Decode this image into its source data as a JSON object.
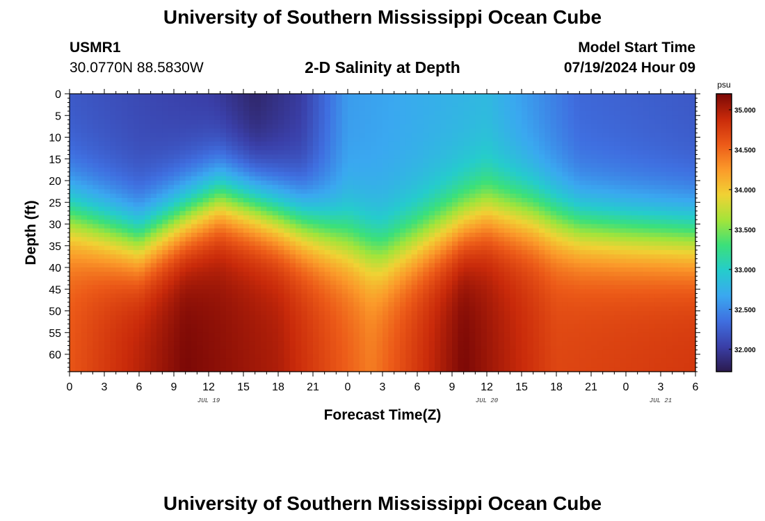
{
  "header": {
    "title": "University of Southern Mississippi Ocean Cube",
    "station_id": "USMR1",
    "coordinates": "30.0770N  88.5830W",
    "plot_title": "2-D Salinity at Depth",
    "start_label": "Model Start Time",
    "start_value": "07/19/2024 Hour 09"
  },
  "footer": {
    "title": "University of Southern Mississippi Ocean Cube"
  },
  "colors": {
    "colormap": [
      "#2b1b4e",
      "#3a3fa8",
      "#3f6fe0",
      "#3aa8f0",
      "#25cccc",
      "#3be07a",
      "#a3e43a",
      "#f0d234",
      "#fb9a2a",
      "#ec5a18",
      "#c92a0a",
      "#7a0806"
    ]
  },
  "chart_data": {
    "type": "heatmap",
    "xlabel": "Forecast Time(Z)",
    "ylabel": "Depth (ft)",
    "x_tick_labels": [
      "0",
      "3",
      "6",
      "9",
      "12",
      "15",
      "18",
      "21",
      "0",
      "3",
      "6",
      "9",
      "12",
      "15",
      "18",
      "21",
      "0",
      "3",
      "6"
    ],
    "x_range_hours": [
      0,
      54
    ],
    "date_labels": [
      {
        "label": "JUL 19",
        "hour": 12
      },
      {
        "label": "JUL 20",
        "hour": 36
      },
      {
        "label": "JUL 21",
        "hour": 51
      }
    ],
    "y_ticks": [
      0,
      5,
      10,
      15,
      20,
      25,
      30,
      35,
      40,
      45,
      50,
      55,
      60
    ],
    "y_range": [
      0,
      64
    ],
    "y_reversed": true,
    "colorbar": {
      "unit": "psu",
      "ticks": [
        "32.000",
        "32.500",
        "33.000",
        "33.500",
        "34.000",
        "34.500",
        "35.000"
      ],
      "range": [
        31.72,
        35.2
      ]
    },
    "description_of_field": {
      "halocline_depth_ft_by_hour": [
        [
          0,
          28
        ],
        [
          6,
          34
        ],
        [
          13,
          24
        ],
        [
          16,
          26
        ],
        [
          24,
          34
        ],
        [
          27,
          37
        ],
        [
          30,
          34
        ],
        [
          36,
          27
        ],
        [
          40,
          28
        ],
        [
          44,
          31
        ],
        [
          48,
          32
        ],
        [
          54,
          33
        ]
      ],
      "surface_salinity_by_hour": [
        [
          0,
          32.2
        ],
        [
          12,
          32.0
        ],
        [
          16,
          31.8
        ],
        [
          20,
          32.0
        ],
        [
          24,
          32.6
        ],
        [
          36,
          32.8
        ],
        [
          44,
          32.3
        ],
        [
          54,
          32.2
        ]
      ],
      "bottom_salinity_by_hour": [
        [
          0,
          34.6
        ],
        [
          10,
          35.2
        ],
        [
          18,
          35.0
        ],
        [
          26,
          34.4
        ],
        [
          34,
          35.2
        ],
        [
          42,
          34.7
        ],
        [
          54,
          34.8
        ]
      ]
    }
  }
}
